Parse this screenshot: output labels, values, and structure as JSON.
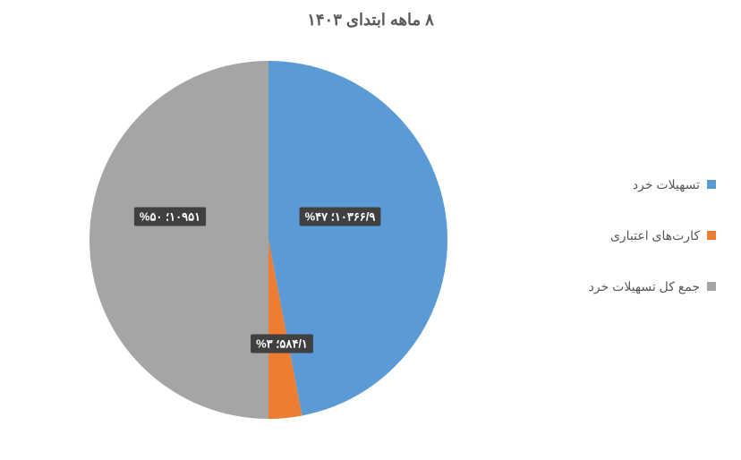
{
  "chart": {
    "type": "pie",
    "title": "۸ ماهه ابتدای ۱۴۰۳",
    "title_fontsize": 18,
    "title_color": "#595959",
    "background_color": "#ffffff",
    "slices": [
      {
        "label": "تسهیلات خرد",
        "value": 10366.9,
        "percent": 47,
        "color": "#5b9bd5",
        "display_label": "۱۰۳۶۶/۹؛ ۴۷%"
      },
      {
        "label": "کارت‌های اعتباری",
        "value": 584.1,
        "percent": 3,
        "color": "#ed7d31",
        "display_label": "۵۸۴/۱؛ ۳%"
      },
      {
        "label": "جمع کل تسهیلات خرد",
        "value": 10951,
        "percent": 50,
        "color": "#a5a5a5",
        "display_label": "۱۰۹۵۱؛ ۵۰%"
      }
    ],
    "legend_fontsize": 14,
    "legend_color": "#595959",
    "label_bg": "#404040",
    "label_text_color": "#ffffff",
    "pie_radius": 200
  }
}
